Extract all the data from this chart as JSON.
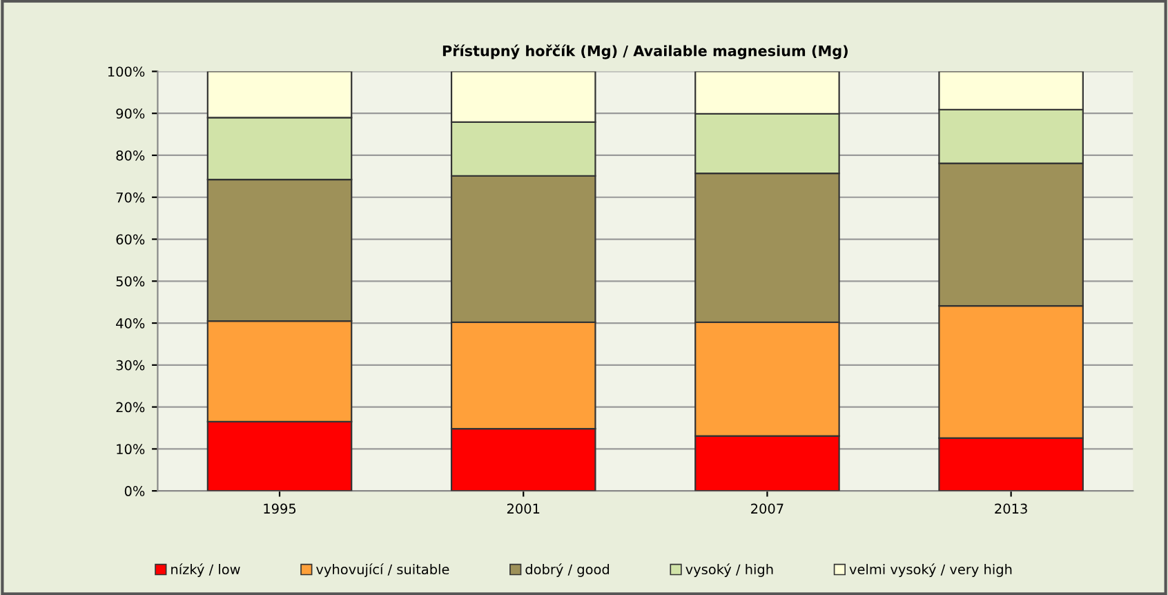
{
  "chart_data": {
    "type": "bar",
    "stacked": true,
    "title": "Přístupný hořčík (Mg) / Available magnesium (Mg)",
    "categories": [
      "1995",
      "2001",
      "2007",
      "2013"
    ],
    "series": [
      {
        "name": "nízký / low",
        "color": "#ff0000",
        "values": [
          16.5,
          14.8,
          13.1,
          12.6
        ]
      },
      {
        "name": "vyhovující / suitable",
        "color": "#ffa03a",
        "values": [
          24.0,
          25.4,
          27.1,
          31.5
        ]
      },
      {
        "name": "dobrý / good",
        "color": "#9e9159",
        "values": [
          33.7,
          34.9,
          35.5,
          34.0
        ]
      },
      {
        "name": "vysoký / high",
        "color": "#d1e3a8",
        "values": [
          14.8,
          12.8,
          14.2,
          12.8
        ]
      },
      {
        "name": "velmi vysoký / very high",
        "color": "#ffffd9",
        "values": [
          11.0,
          12.1,
          10.1,
          9.1
        ]
      }
    ],
    "ylim": [
      0,
      100
    ],
    "yticks": [
      {
        "value": 0,
        "label": "0%"
      },
      {
        "value": 10,
        "label": "10%"
      },
      {
        "value": 20,
        "label": "20%"
      },
      {
        "value": 30,
        "label": "30%"
      },
      {
        "value": 40,
        "label": "40%"
      },
      {
        "value": 50,
        "label": "50%"
      },
      {
        "value": 60,
        "label": "60%"
      },
      {
        "value": 70,
        "label": "70%"
      },
      {
        "value": 80,
        "label": "80%"
      },
      {
        "value": 90,
        "label": "90%"
      },
      {
        "value": 100,
        "label": "100%"
      }
    ],
    "grid": "y",
    "legend": "bottom"
  }
}
